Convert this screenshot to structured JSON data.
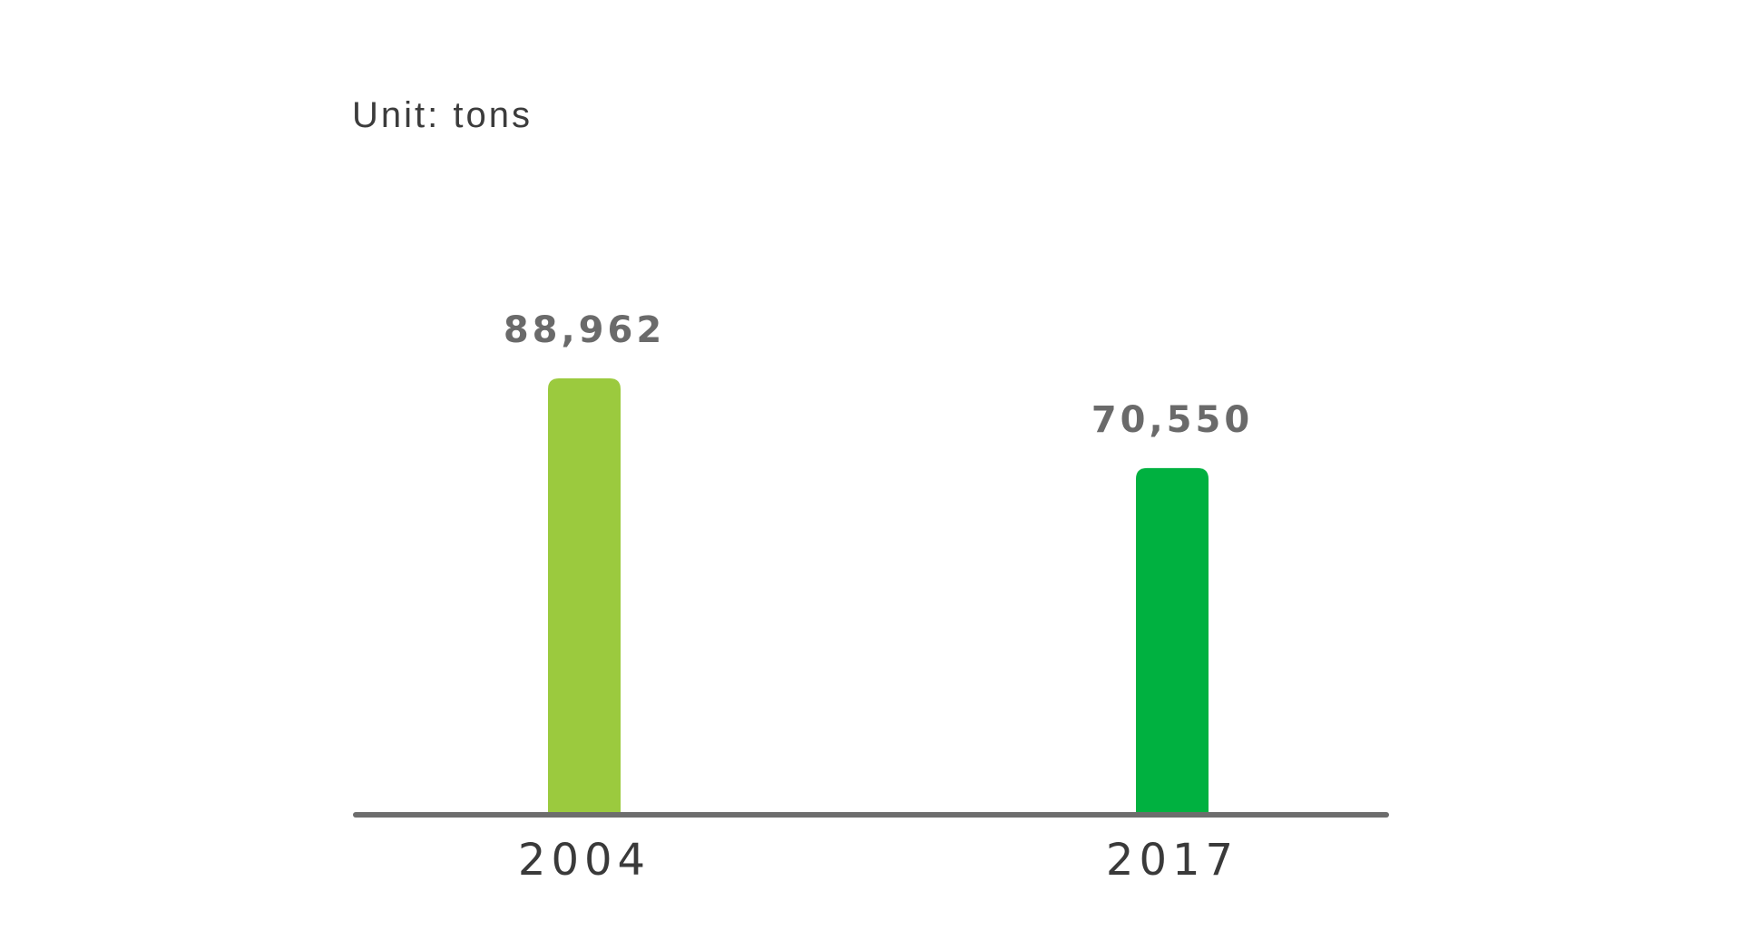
{
  "unit_text": "Unit: tons",
  "chart_data": {
    "type": "bar",
    "categories": [
      "2004",
      "2017"
    ],
    "values": [
      88962,
      70550
    ],
    "value_labels": [
      "88,962",
      "70,550"
    ],
    "bar_colors": [
      "#9bca3e",
      "#00b140"
    ],
    "axis_color": "#6d6d6d",
    "unit": "Unit: tons",
    "ylim": [
      0,
      100000
    ],
    "grid": false,
    "legend": "none"
  }
}
